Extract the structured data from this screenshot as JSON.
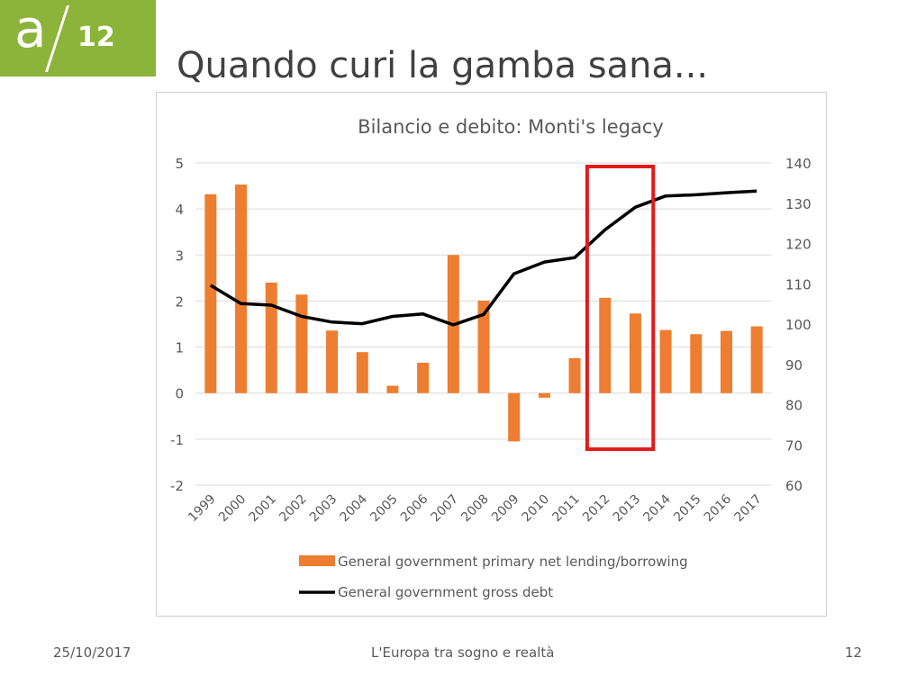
{
  "logo": {
    "letter": "a",
    "number": "12",
    "color": "#8cb43a"
  },
  "slide_title": "Quando curi la gamba sana...",
  "footer": {
    "date": "25/10/2017",
    "center": "L'Europa tra sogno e realtà",
    "page": "12"
  },
  "chart_data": {
    "type": "bar+line",
    "title": "Bilancio e debito: Monti's legacy",
    "categories": [
      "1999",
      "2000",
      "2001",
      "2002",
      "2003",
      "2004",
      "2005",
      "2006",
      "2007",
      "2008",
      "2009",
      "2010",
      "2011",
      "2012",
      "2013",
      "2014",
      "2015",
      "2016",
      "2017"
    ],
    "series": [
      {
        "name": "General government primary net lending/borrowing",
        "type": "bar",
        "axis": "left",
        "color": "#ed7d31",
        "values": [
          4.32,
          4.53,
          2.4,
          2.14,
          1.36,
          0.89,
          0.16,
          0.66,
          3.0,
          2.01,
          -1.05,
          -0.1,
          0.76,
          2.07,
          1.73,
          1.37,
          1.28,
          1.35,
          1.45
        ]
      },
      {
        "name": "General government gross debt",
        "type": "line",
        "axis": "right",
        "color": "#000000",
        "values": [
          109.6,
          105.1,
          104.7,
          101.9,
          100.5,
          100.1,
          101.9,
          102.5,
          99.8,
          102.4,
          112.5,
          115.4,
          116.5,
          123.4,
          129.0,
          131.8,
          132.1,
          132.6,
          133.0
        ]
      }
    ],
    "y_left": {
      "min": -2,
      "max": 5,
      "ticks": [
        5,
        4,
        3,
        2,
        1,
        0,
        -1,
        -2
      ]
    },
    "y_right": {
      "min": 60,
      "max": 140,
      "ticks": [
        140,
        130,
        120,
        110,
        100,
        90,
        80,
        70,
        60
      ]
    },
    "legend_position": "bottom",
    "highlight": {
      "from": "2012",
      "to": "2013",
      "color": "#e31a1c"
    },
    "grid": true
  }
}
